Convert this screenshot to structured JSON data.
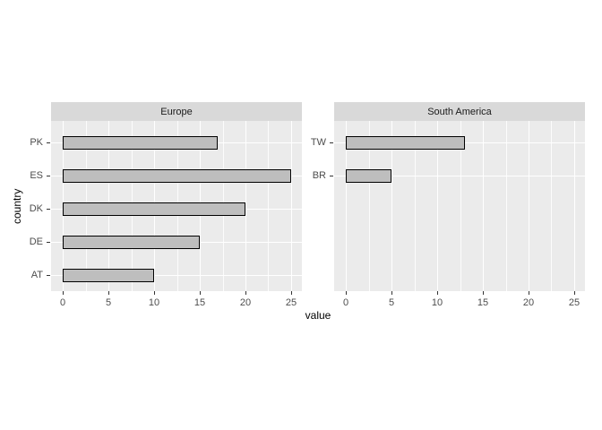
{
  "chart_data": {
    "type": "bar",
    "orientation": "horizontal",
    "xlabel": "value",
    "ylabel": "country",
    "xlim": [
      0,
      25
    ],
    "x_ticks": [
      0,
      5,
      10,
      15,
      20,
      25
    ],
    "x_minor_ticks": [
      2.5,
      7.5,
      12.5,
      17.5,
      22.5
    ],
    "legend_position": "none",
    "grid": "white major and minor gridlines on grey panel",
    "facets": [
      {
        "label": "Europe",
        "categories": [
          "PK",
          "ES",
          "DK",
          "DE",
          "AT"
        ],
        "values": [
          17,
          25,
          20,
          15,
          10
        ]
      },
      {
        "label": "South America",
        "categories": [
          "TW",
          "BR"
        ],
        "values": [
          13,
          5
        ]
      }
    ],
    "colors": {
      "panel_background": "#EBEBEB",
      "strip_background": "#D9D9D9",
      "bar_fill": "#BEBEBE",
      "bar_outline": "#000000",
      "gridline": "#FFFFFF",
      "tick_label": "#4D4D4D",
      "axis_title": "#000000",
      "page_background": "#FFFFFF"
    }
  }
}
